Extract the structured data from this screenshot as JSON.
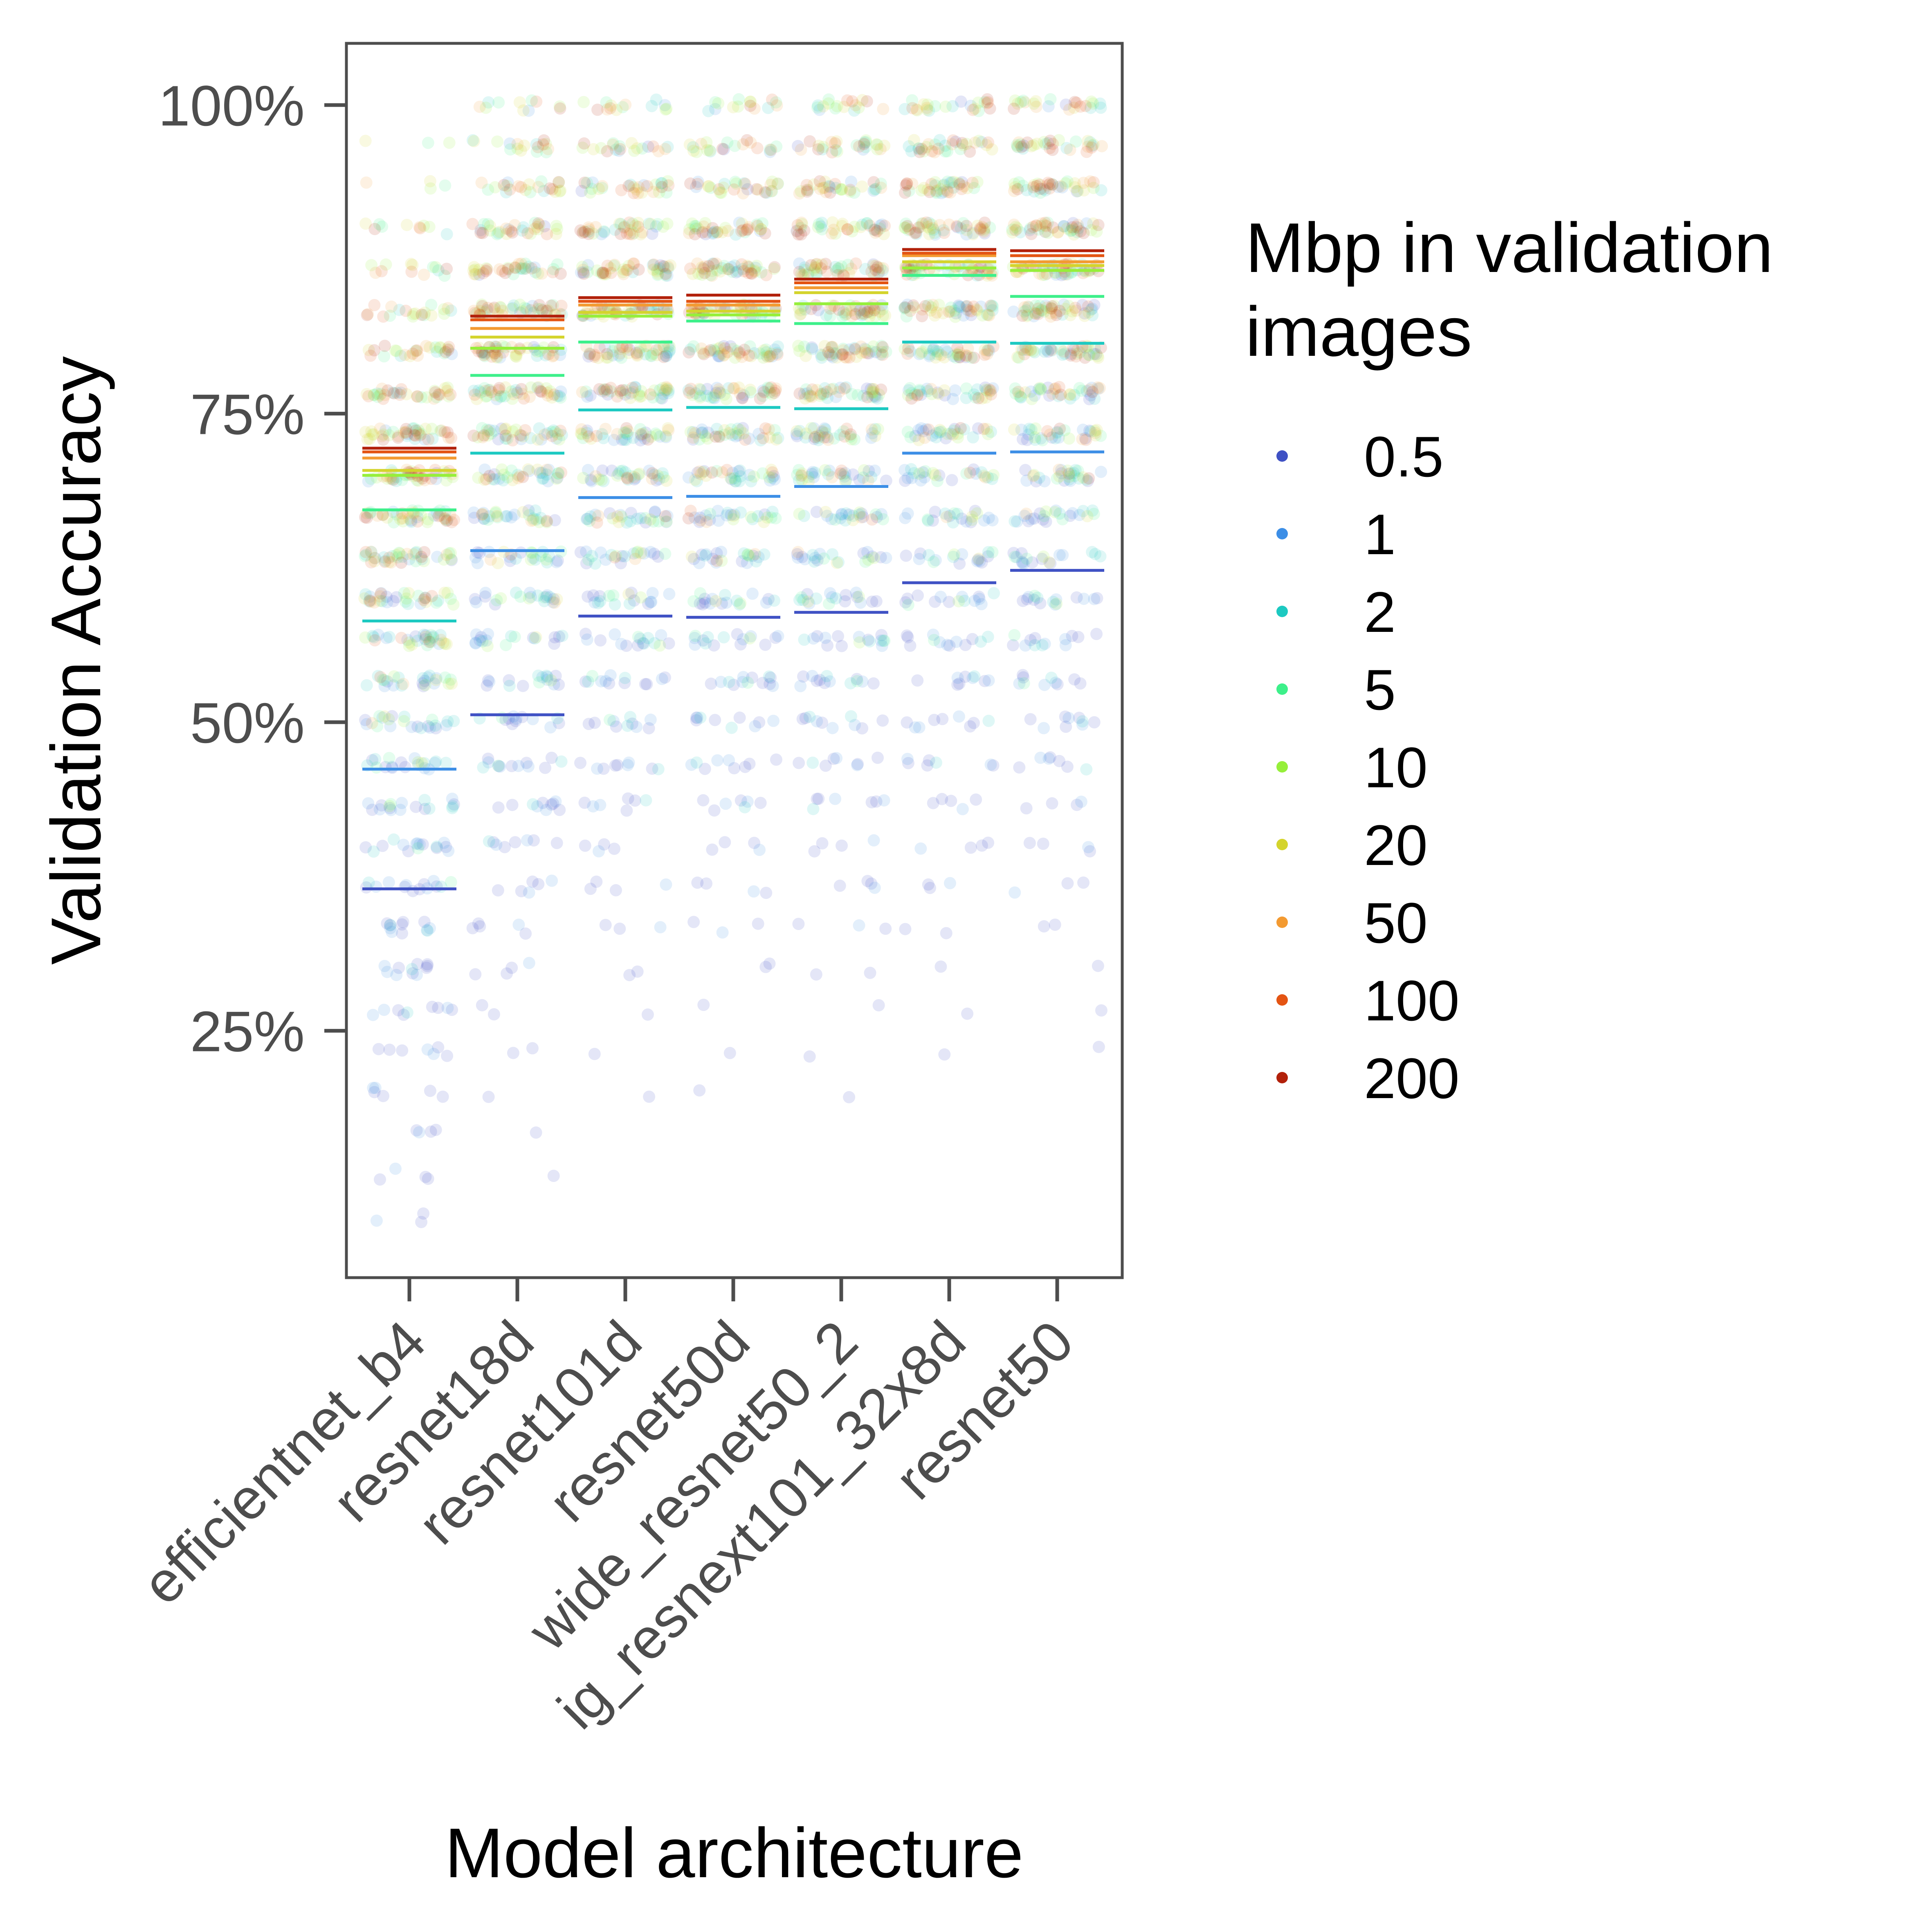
{
  "chart_data": {
    "type": "scatter",
    "title": "",
    "xlabel": "Model architecture",
    "ylabel": "Validation Accuracy",
    "categories": [
      "efficientnet_b4",
      "resnet18d",
      "resnet101d",
      "resnet50d",
      "wide_resnet50_2",
      "ig_resnext101_32x8d",
      "resnet50"
    ],
    "ylim": [
      0.05,
      1.05
    ],
    "yticks": [
      0.25,
      0.5,
      0.75,
      1.0
    ],
    "ytick_labels": [
      "25%",
      "50%",
      "75%",
      "100%"
    ],
    "grid": false,
    "legend": {
      "title_lines": [
        "Mbp in validation",
        "images"
      ],
      "placement": "right"
    },
    "series": [
      {
        "name": "0.5",
        "color": "#3F51C4",
        "means": [
          0.365,
          0.506,
          0.586,
          0.585,
          0.589,
          0.613,
          0.623
        ]
      },
      {
        "name": "1",
        "color": "#3C8EE6",
        "means": [
          0.462,
          0.639,
          0.682,
          0.683,
          0.691,
          0.718,
          0.719
        ]
      },
      {
        "name": "2",
        "color": "#1CC9C1",
        "means": [
          0.582,
          0.718,
          0.753,
          0.755,
          0.754,
          0.808,
          0.807
        ]
      },
      {
        "name": "5",
        "color": "#3DF08A",
        "means": [
          0.672,
          0.781,
          0.808,
          0.825,
          0.823,
          0.862,
          0.845
        ]
      },
      {
        "name": "10",
        "color": "#96EF3A",
        "means": [
          0.7,
          0.803,
          0.829,
          0.83,
          0.839,
          0.868,
          0.866
        ]
      },
      {
        "name": "20",
        "color": "#D4D42C",
        "means": [
          0.704,
          0.812,
          0.832,
          0.833,
          0.848,
          0.873,
          0.87
        ]
      },
      {
        "name": "50",
        "color": "#F39A31",
        "means": [
          0.714,
          0.819,
          0.838,
          0.838,
          0.852,
          0.878,
          0.873
        ]
      },
      {
        "name": "100",
        "color": "#E45413",
        "means": [
          0.719,
          0.826,
          0.841,
          0.841,
          0.856,
          0.88,
          0.878
        ]
      },
      {
        "name": "200",
        "color": "#B2200A",
        "means": [
          0.722,
          0.829,
          0.844,
          0.846,
          0.859,
          0.883,
          0.882
        ]
      }
    ]
  }
}
